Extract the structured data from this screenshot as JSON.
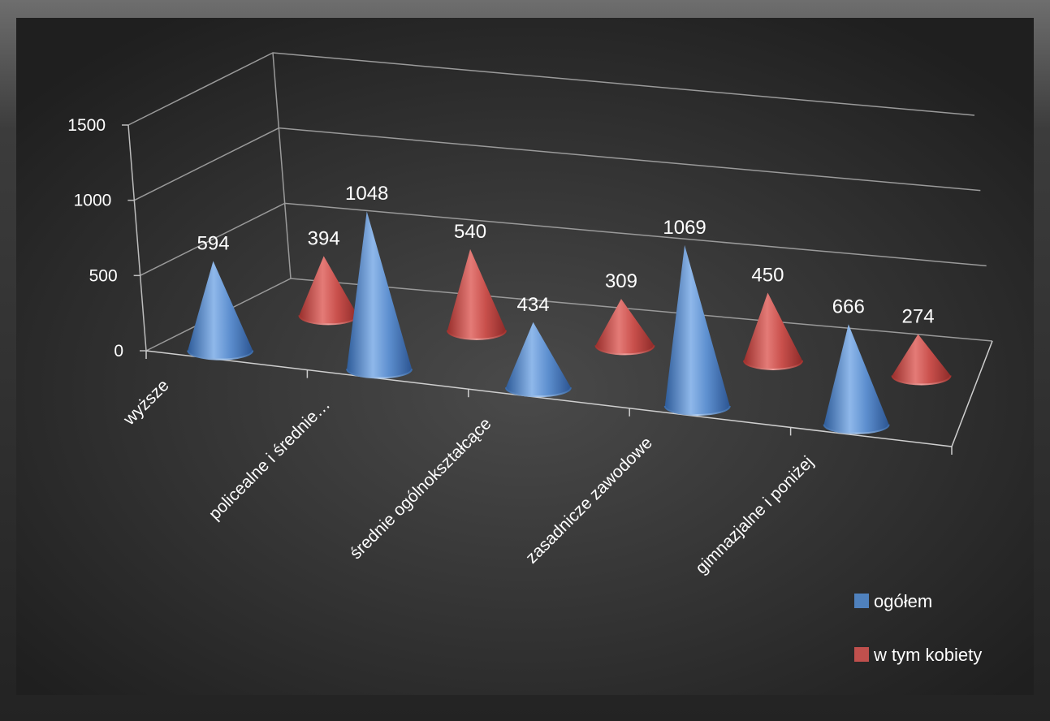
{
  "chart_data": {
    "type": "bar",
    "subtype": "3d-cone",
    "categories": [
      "wyższe",
      "policealne i średnie…",
      "średnie ogólnokształcące",
      "zasadnicze zawodowe",
      "gimnazjalne i poniżej"
    ],
    "series": [
      {
        "name": "ogółem",
        "values": [
          594,
          1048,
          434,
          1069,
          666
        ],
        "color": "#4f81bd"
      },
      {
        "name": "w tym kobiety",
        "values": [
          394,
          540,
          309,
          450,
          274
        ],
        "color": "#c0504d"
      }
    ],
    "yticks": [
      "0",
      "500",
      "1000",
      "1500"
    ],
    "ylim": [
      0,
      1500
    ],
    "grid": true,
    "legend_position": "bottom-right",
    "background": "#2a2a2a"
  }
}
